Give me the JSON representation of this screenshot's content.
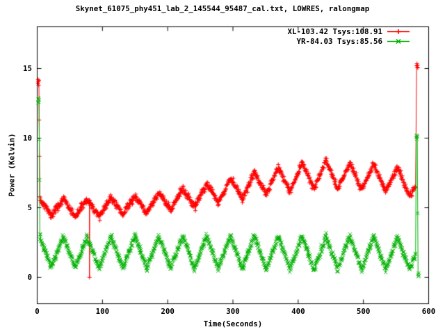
{
  "title": "Skynet_61075_phy451_lab_2_145544_95487_cal.txt, LOWRES, ralongmap",
  "axes": {
    "xlabel": "Time(Seconds)",
    "ylabel": "Power (Kelvin)",
    "x_ticks": [
      0,
      100,
      200,
      300,
      400,
      500,
      600
    ],
    "y_ticks": [
      0,
      5,
      10,
      15
    ],
    "x_range": [
      0,
      600
    ],
    "y_range": [
      -1.9,
      18.0
    ]
  },
  "legend": [
    {
      "label": "XL-103.42 Tsys:108.91",
      "color": "#ff0000",
      "marker": "plus-icon"
    },
    {
      "label": "YR-84.03 Tsys:85.56",
      "color": "#00b000",
      "marker": "cross-icon"
    }
  ],
  "chart_data": {
    "type": "scatter",
    "style": "linespoints",
    "title": "Skynet_61075_phy451_lab_2_145544_95487_cal.txt, LOWRES, ralongmap",
    "xlabel": "Time(Seconds)",
    "ylabel": "Power (Kelvin)",
    "xlim": [
      0,
      600
    ],
    "ylim": [
      -1.9,
      18.0
    ],
    "grid": false,
    "legend_position": "top-right-inside",
    "oscillation": {
      "period_seconds": 36.6,
      "peak_phase_t": 40,
      "waveform": "triangle",
      "sample_interval_s": 0.5,
      "noise_sigma": 0.13
    },
    "series": [
      {
        "name": "XL-103.42 Tsys:108.91",
        "color": "#ff0000",
        "marker": "plus",
        "t_start": 4,
        "t_end": 580,
        "mean_keypoints": [
          [
            4,
            5.1
          ],
          [
            40,
            5.0
          ],
          [
            80,
            4.95
          ],
          [
            120,
            5.1
          ],
          [
            160,
            5.25
          ],
          [
            200,
            5.5
          ],
          [
            240,
            5.8
          ],
          [
            280,
            6.15
          ],
          [
            320,
            6.55
          ],
          [
            360,
            6.9
          ],
          [
            400,
            7.2
          ],
          [
            430,
            7.4
          ],
          [
            470,
            7.3
          ],
          [
            510,
            7.2
          ],
          [
            545,
            7.05
          ],
          [
            580,
            6.6
          ]
        ],
        "amp_keypoints": [
          [
            4,
            0.6
          ],
          [
            150,
            0.65
          ],
          [
            250,
            0.75
          ],
          [
            350,
            0.9
          ],
          [
            430,
            1.05
          ],
          [
            520,
            0.95
          ],
          [
            580,
            0.9
          ]
        ],
        "cal_spike_start": [
          [
            1.0,
            13.95
          ],
          [
            1.4,
            14.2
          ],
          [
            1.8,
            14.05
          ],
          [
            2.2,
            13.8
          ],
          [
            2.6,
            14.15
          ],
          [
            3.0,
            11.3
          ],
          [
            3.4,
            8.7
          ]
        ],
        "cal_spike_end": [
          [
            581.5,
            15.2
          ],
          [
            582.0,
            15.35
          ],
          [
            582.5,
            15.1
          ],
          [
            583.0,
            15.25
          ],
          [
            583.4,
            15.05
          ]
        ],
        "outlier_points": [
          [
            80.2,
            0.0
          ]
        ]
      },
      {
        "name": "YR-84.03 Tsys:85.56",
        "color": "#00b000",
        "marker": "cross",
        "t_start": 4,
        "t_end": 580.3,
        "mean_keypoints": [
          [
            4,
            1.85
          ],
          [
            100,
            1.8
          ],
          [
            300,
            1.8
          ],
          [
            580,
            1.7
          ]
        ],
        "amp_keypoints": [
          [
            4,
            1.1
          ],
          [
            300,
            1.2
          ],
          [
            580,
            1.2
          ]
        ],
        "cal_spike_start": [
          [
            1.2,
            12.55
          ],
          [
            1.6,
            12.8
          ],
          [
            2.0,
            12.9
          ],
          [
            2.4,
            12.6
          ],
          [
            2.8,
            12.75
          ],
          [
            3.2,
            9.9
          ],
          [
            3.6,
            7.0
          ]
        ],
        "cal_spike_end": [
          [
            581.0,
            10.05
          ],
          [
            581.4,
            10.2
          ],
          [
            581.8,
            9.95
          ],
          [
            582.2,
            10.15
          ],
          [
            582.6,
            10.1
          ],
          [
            583.2,
            4.6
          ],
          [
            583.8,
            0.2
          ],
          [
            584.2,
            0.05
          ],
          [
            584.6,
            0.3
          ],
          [
            585.0,
            0.12
          ]
        ],
        "outlier_points": []
      }
    ]
  }
}
